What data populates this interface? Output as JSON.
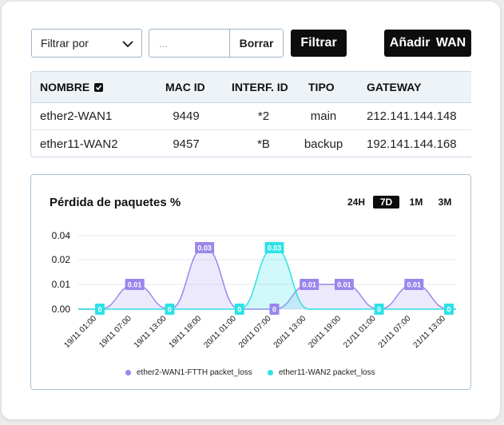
{
  "toolbar": {
    "filter_select": "Filtrar por",
    "search_placeholder": "...",
    "clear_label": "Borrar",
    "filter_label": "Filtrar",
    "add_label": "Añadir WAN"
  },
  "table": {
    "headers": [
      "NOMBRE",
      "MAC ID",
      "INTERF. ID",
      "TIPO",
      "GATEWAY"
    ],
    "rows": [
      [
        "ether2-WAN1",
        "9449",
        "*2",
        "main",
        "212.141.144.148"
      ],
      [
        "ether11-WAN2",
        "9457",
        "*B",
        "backup",
        "192.141.144.168"
      ]
    ]
  },
  "chart_panel": {
    "title": "Pérdida de paquetes %",
    "ranges": [
      "24H",
      "7D",
      "1M",
      "3M"
    ],
    "active_range": "7D"
  },
  "colors": {
    "series1": "#9a86ec",
    "series2": "#2de2e6",
    "button_dark": "#0d0d0d"
  },
  "chart_data": {
    "type": "area",
    "title": "Pérdida de paquetes %",
    "x": [
      "19/11 01:00",
      "19/11 07:00",
      "19/11 13:00",
      "19/11 19:00",
      "20/11 01:00",
      "20/11 07:00",
      "20/11 13:00",
      "20/11 19:00",
      "21/11 01:00",
      "21/11 07:00",
      "21/11 13:00"
    ],
    "yticks": [
      "0.04",
      "0.02",
      "0.01",
      "0.00"
    ],
    "ylim": [
      0,
      0.04
    ],
    "grid": true,
    "legend": "bottom",
    "series": [
      {
        "name": "ether2-WAN1-FTTH packet_loss",
        "values": [
          0,
          0.01,
          0,
          0.03,
          0,
          0,
          0.01,
          0.01,
          0,
          0.01,
          0
        ]
      },
      {
        "name": "ether11-WAN2 packet_loss",
        "values": [
          0,
          0,
          0,
          0,
          0,
          0.03,
          0,
          0,
          0,
          0,
          0
        ]
      }
    ]
  }
}
